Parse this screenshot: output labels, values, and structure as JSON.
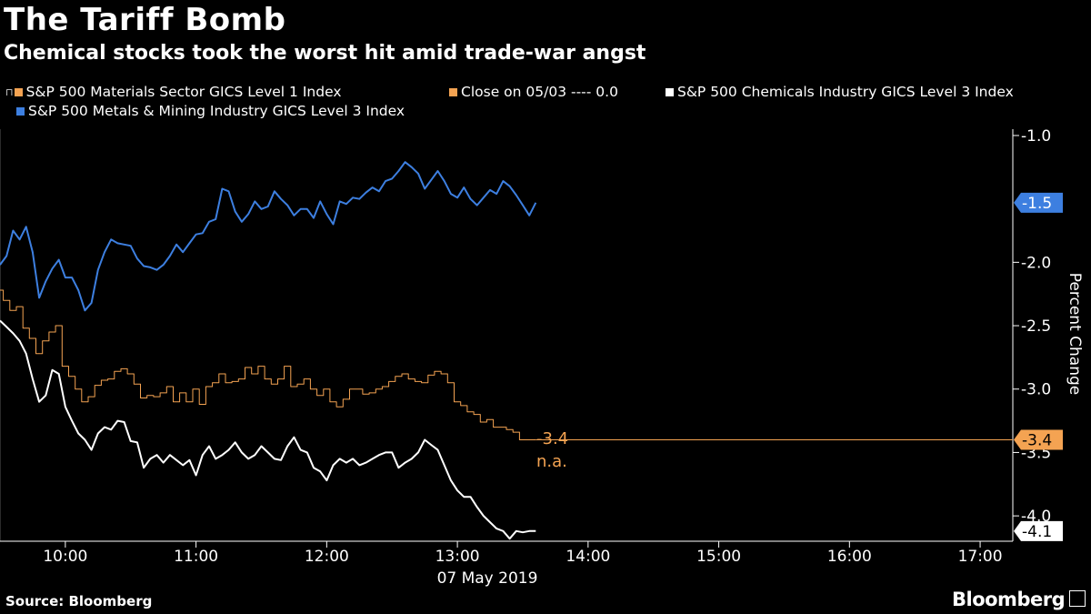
{
  "header": {
    "title": "The Tariff Bomb",
    "subtitle": "Chemical stocks took the worst hit amid trade-war angst"
  },
  "footer": {
    "source": "Source: Bloomberg",
    "brand": "Bloomberg"
  },
  "chart_data": {
    "type": "line",
    "xlabel": "07 May 2019",
    "ylabel": "Percent Change",
    "x_tick_labels": [
      "10:00",
      "11:00",
      "12:00",
      "13:00",
      "14:00",
      "15:00",
      "16:00",
      "17:00"
    ],
    "y_tick_labels": [
      "-1.0",
      "-2.0",
      "-2.5",
      "-3.0",
      "-3.5",
      "-4.0"
    ],
    "ylim": [
      -4.2,
      -0.95
    ],
    "xlim": [
      "09:30",
      "17:15"
    ],
    "grid": false,
    "legend_position": "top",
    "legend": [
      {
        "label": "S&P 500 Materials Sector GICS Level 1 Index",
        "color": "#f4a352"
      },
      {
        "label": "Close on 05/03 ---- 0.0",
        "color": "#f4a352"
      },
      {
        "label": "S&P 500 Chemicals Industry GICS Level 3 Index",
        "color": "#ffffff"
      },
      {
        "label": "S&P 500 Metals & Mining Industry GICS Level 3 Index",
        "color": "#3d7fe0"
      }
    ],
    "annotation": {
      "value": "-3.4",
      "note": "n.a."
    },
    "series": [
      {
        "name": "S&P 500 Metals & Mining Industry GICS Level 3 Index",
        "color": "#3d7fe0",
        "last_label": "-1.5",
        "x": [
          "09:30",
          "09:33",
          "09:36",
          "09:39",
          "09:42",
          "09:45",
          "09:48",
          "09:51",
          "09:54",
          "09:57",
          "10:00",
          "10:03",
          "10:06",
          "10:09",
          "10:12",
          "10:15",
          "10:18",
          "10:21",
          "10:24",
          "10:27",
          "10:30",
          "10:33",
          "10:36",
          "10:39",
          "10:42",
          "10:45",
          "10:48",
          "10:51",
          "10:54",
          "10:57",
          "11:00",
          "11:03",
          "11:06",
          "11:09",
          "11:12",
          "11:15",
          "11:18",
          "11:21",
          "11:24",
          "11:27",
          "11:30",
          "11:33",
          "11:36",
          "11:39",
          "11:42",
          "11:45",
          "11:48",
          "11:51",
          "11:54",
          "11:57",
          "12:00",
          "12:03",
          "12:06",
          "12:09",
          "12:12",
          "12:15",
          "12:18",
          "12:21",
          "12:24",
          "12:27",
          "12:30",
          "12:33",
          "12:36",
          "12:39",
          "12:42",
          "12:45",
          "12:48",
          "12:51",
          "12:54",
          "12:57",
          "13:00",
          "13:03",
          "13:06",
          "13:09",
          "13:12",
          "13:15",
          "13:18",
          "13:21",
          "13:24",
          "13:27",
          "13:30",
          "13:33",
          "13:36"
        ],
        "y": [
          -2.02,
          -1.95,
          -1.75,
          -1.82,
          -1.72,
          -1.92,
          -2.28,
          -2.15,
          -2.05,
          -1.98,
          -2.12,
          -2.12,
          -2.22,
          -2.38,
          -2.32,
          -2.06,
          -1.92,
          -1.82,
          -1.85,
          -1.86,
          -1.87,
          -1.97,
          -2.03,
          -2.04,
          -2.06,
          -2.02,
          -1.95,
          -1.86,
          -1.92,
          -1.85,
          -1.78,
          -1.77,
          -1.68,
          -1.66,
          -1.42,
          -1.44,
          -1.6,
          -1.68,
          -1.62,
          -1.52,
          -1.58,
          -1.56,
          -1.44,
          -1.5,
          -1.55,
          -1.63,
          -1.58,
          -1.58,
          -1.65,
          -1.52,
          -1.62,
          -1.7,
          -1.52,
          -1.54,
          -1.49,
          -1.5,
          -1.45,
          -1.41,
          -1.44,
          -1.36,
          -1.34,
          -1.28,
          -1.21,
          -1.25,
          -1.3,
          -1.42,
          -1.35,
          -1.28,
          -1.36,
          -1.46,
          -1.49,
          -1.41,
          -1.5,
          -1.55,
          -1.49,
          -1.43,
          -1.46,
          -1.36,
          -1.4,
          -1.47,
          -1.55,
          -1.63,
          -1.53
        ]
      },
      {
        "name": "S&P 500 Materials Sector GICS Level 1 Index",
        "color": "#f4a352",
        "last_label": "-3.4",
        "x": [
          "09:30",
          "09:33",
          "09:36",
          "09:39",
          "09:42",
          "09:45",
          "09:48",
          "09:51",
          "09:54",
          "09:57",
          "10:00",
          "10:03",
          "10:06",
          "10:09",
          "10:12",
          "10:15",
          "10:18",
          "10:21",
          "10:24",
          "10:27",
          "10:30",
          "10:33",
          "10:36",
          "10:39",
          "10:42",
          "10:45",
          "10:48",
          "10:51",
          "10:54",
          "10:57",
          "11:00",
          "11:03",
          "11:06",
          "11:09",
          "11:12",
          "11:15",
          "11:18",
          "11:21",
          "11:24",
          "11:27",
          "11:30",
          "11:33",
          "11:36",
          "11:39",
          "11:42",
          "11:45",
          "11:48",
          "11:51",
          "11:54",
          "11:57",
          "12:00",
          "12:03",
          "12:06",
          "12:09",
          "12:12",
          "12:15",
          "12:18",
          "12:21",
          "12:24",
          "12:27",
          "12:30",
          "12:33",
          "12:36",
          "12:39",
          "12:42",
          "12:45",
          "12:48",
          "12:51",
          "12:54",
          "12:57",
          "13:00",
          "13:03",
          "13:06",
          "13:09",
          "13:12",
          "13:15",
          "13:18",
          "13:21",
          "13:24",
          "13:27",
          "13:30",
          "13:33",
          "13:36"
        ],
        "y": [
          -2.22,
          -2.3,
          -2.38,
          -2.35,
          -2.52,
          -2.6,
          -2.72,
          -2.62,
          -2.55,
          -2.5,
          -2.82,
          -2.9,
          -3.0,
          -3.1,
          -3.06,
          -2.97,
          -2.93,
          -2.92,
          -2.86,
          -2.84,
          -2.88,
          -2.96,
          -3.07,
          -3.05,
          -3.06,
          -3.03,
          -2.98,
          -3.1,
          -3.03,
          -3.1,
          -3.0,
          -3.12,
          -2.98,
          -2.95,
          -2.88,
          -2.95,
          -2.94,
          -2.92,
          -2.83,
          -2.88,
          -2.82,
          -2.92,
          -2.96,
          -2.92,
          -2.82,
          -2.98,
          -2.96,
          -2.92,
          -3.0,
          -3.05,
          -3.0,
          -3.1,
          -3.14,
          -3.08,
          -3.0,
          -3.0,
          -3.04,
          -3.03,
          -3.0,
          -2.98,
          -2.94,
          -2.9,
          -2.88,
          -2.92,
          -2.94,
          -2.95,
          -2.89,
          -2.86,
          -2.88,
          -2.95,
          -3.1,
          -3.13,
          -3.18,
          -3.2,
          -3.26,
          -3.24,
          -3.3,
          -3.3,
          -3.32,
          -3.34,
          -3.4,
          -3.4,
          -3.4
        ]
      },
      {
        "name": "S&P 500 Chemicals Industry GICS Level 3 Index",
        "color": "#ffffff",
        "last_label": "-4.1",
        "x": [
          "09:30",
          "09:33",
          "09:36",
          "09:39",
          "09:42",
          "09:45",
          "09:48",
          "09:51",
          "09:54",
          "09:57",
          "10:00",
          "10:03",
          "10:06",
          "10:09",
          "10:12",
          "10:15",
          "10:18",
          "10:21",
          "10:24",
          "10:27",
          "10:30",
          "10:33",
          "10:36",
          "10:39",
          "10:42",
          "10:45",
          "10:48",
          "10:51",
          "10:54",
          "10:57",
          "11:00",
          "11:03",
          "11:06",
          "11:09",
          "11:12",
          "11:15",
          "11:18",
          "11:21",
          "11:24",
          "11:27",
          "11:30",
          "11:33",
          "11:36",
          "11:39",
          "11:42",
          "11:45",
          "11:48",
          "11:51",
          "11:54",
          "11:57",
          "12:00",
          "12:03",
          "12:06",
          "12:09",
          "12:12",
          "12:15",
          "12:18",
          "12:21",
          "12:24",
          "12:27",
          "12:30",
          "12:33",
          "12:36",
          "12:39",
          "12:42",
          "12:45",
          "12:48",
          "12:51",
          "12:54",
          "12:57",
          "13:00",
          "13:03",
          "13:06",
          "13:09",
          "13:12",
          "13:15",
          "13:18",
          "13:21",
          "13:24",
          "13:27",
          "13:30",
          "13:33",
          "13:36"
        ],
        "y": [
          -2.46,
          -2.51,
          -2.56,
          -2.62,
          -2.72,
          -2.92,
          -3.1,
          -3.05,
          -2.85,
          -2.88,
          -3.14,
          -3.25,
          -3.35,
          -3.4,
          -3.48,
          -3.35,
          -3.3,
          -3.32,
          -3.25,
          -3.26,
          -3.41,
          -3.42,
          -3.62,
          -3.55,
          -3.52,
          -3.58,
          -3.52,
          -3.56,
          -3.6,
          -3.56,
          -3.68,
          -3.52,
          -3.45,
          -3.55,
          -3.52,
          -3.48,
          -3.42,
          -3.5,
          -3.55,
          -3.52,
          -3.45,
          -3.5,
          -3.55,
          -3.56,
          -3.45,
          -3.38,
          -3.48,
          -3.5,
          -3.62,
          -3.65,
          -3.72,
          -3.6,
          -3.55,
          -3.58,
          -3.55,
          -3.6,
          -3.58,
          -3.55,
          -3.52,
          -3.5,
          -3.5,
          -3.62,
          -3.58,
          -3.55,
          -3.5,
          -3.4,
          -3.44,
          -3.48,
          -3.6,
          -3.72,
          -3.8,
          -3.85,
          -3.85,
          -3.93,
          -4.0,
          -4.05,
          -4.1,
          -4.12,
          -4.18,
          -4.12,
          -4.13,
          -4.12,
          -4.12
        ]
      }
    ]
  }
}
